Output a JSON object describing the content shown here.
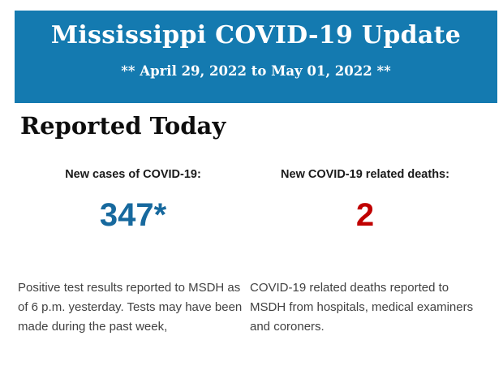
{
  "colors": {
    "banner_background": "#147ab0",
    "banner_text": "#ffffff",
    "cases_value_color": "#17699e",
    "deaths_value_color": "#c00000"
  },
  "banner": {
    "title": "Mississippi COVID-19 Update",
    "date_range": "** April 29, 2022 to May 01, 2022 **"
  },
  "section": {
    "heading": "Reported Today"
  },
  "stats": {
    "cases": {
      "label": "New cases of COVID-19:",
      "value": "347*",
      "description": "Positive test results reported to MSDH as of 6 p.m. yesterday. Tests may have been made during the past week,"
    },
    "deaths": {
      "label": "New COVID-19 related deaths:",
      "value": "2",
      "description": "COVID-19 related deaths reported to MSDH from hospitals, medical examiners and coroners."
    }
  }
}
